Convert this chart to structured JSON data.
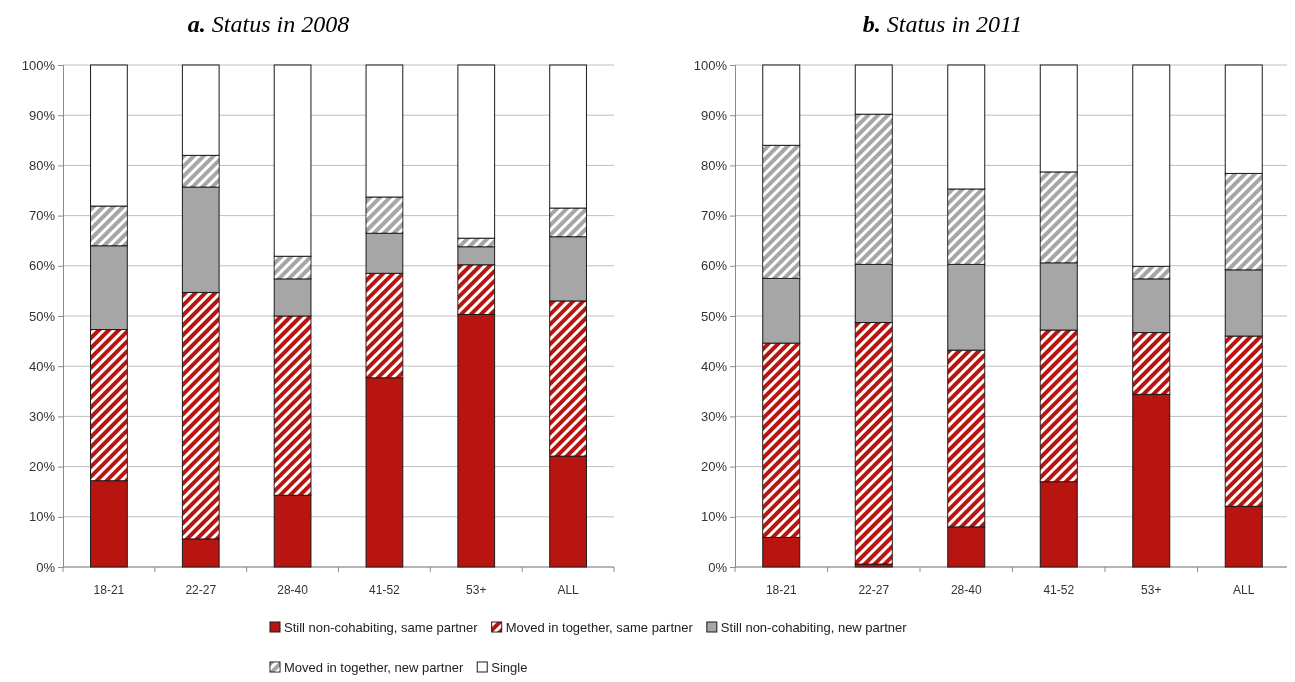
{
  "chart_data": [
    {
      "type": "bar",
      "stacked": true,
      "title": "a. Status in 2008",
      "categories": [
        "18-21",
        "22-27",
        "28-40",
        "41-52",
        "53+",
        "ALL"
      ],
      "ylim": [
        0,
        100
      ],
      "yticks": [
        {
          "value": 0,
          "label": "0%"
        },
        {
          "value": 10,
          "label": "10%"
        },
        {
          "value": 20,
          "label": "20%"
        },
        {
          "value": 30,
          "label": "30%"
        },
        {
          "value": 40,
          "label": "40%"
        },
        {
          "value": 50,
          "label": "50%"
        },
        {
          "value": 60,
          "label": "60%"
        },
        {
          "value": 70,
          "label": "70%"
        },
        {
          "value": 80,
          "label": "80%"
        },
        {
          "value": 90,
          "label": "90%"
        },
        {
          "value": 100,
          "label": "100%"
        }
      ],
      "grid": "y",
      "legend": "bottom",
      "series": [
        {
          "name": "Still non-cohabiting, same partner",
          "color": "#b91510",
          "values": [
            17.2,
            5.6,
            14.3,
            37.7,
            50.3,
            22.1
          ]
        },
        {
          "name": "Moved in together, same partner",
          "color": "#b91510",
          "values": [
            30.1,
            49.1,
            35.7,
            20.8,
            9.9,
            30.9
          ]
        },
        {
          "name": "Still non-cohabiting, new partner",
          "color": "#a6a6a6",
          "values": [
            16.7,
            21.0,
            7.4,
            8.0,
            3.6,
            12.8
          ]
        },
        {
          "name": "Moved in together, new partner",
          "color": "#a6a6a6",
          "values": [
            7.9,
            6.3,
            4.5,
            7.2,
            1.7,
            5.7
          ]
        },
        {
          "name": "Single",
          "color": "#ffffff",
          "values": [
            28.1,
            18.0,
            38.1,
            26.3,
            34.5,
            28.5
          ]
        }
      ]
    },
    {
      "type": "bar",
      "stacked": true,
      "title": "b. Status in 2011",
      "categories": [
        "18-21",
        "22-27",
        "28-40",
        "41-52",
        "53+",
        "ALL"
      ],
      "ylim": [
        0,
        100
      ],
      "yticks": [
        {
          "value": 0,
          "label": "0%"
        },
        {
          "value": 10,
          "label": "10%"
        },
        {
          "value": 20,
          "label": "20%"
        },
        {
          "value": 30,
          "label": "30%"
        },
        {
          "value": 40,
          "label": "40%"
        },
        {
          "value": 50,
          "label": "50%"
        },
        {
          "value": 60,
          "label": "60%"
        },
        {
          "value": 70,
          "label": "70%"
        },
        {
          "value": 80,
          "label": "80%"
        },
        {
          "value": 90,
          "label": "90%"
        },
        {
          "value": 100,
          "label": "100%"
        }
      ],
      "grid": "y",
      "series": [
        {
          "color": "#b91510",
          "values": [
            5.9,
            0.6,
            8.0,
            17.0,
            34.4,
            12.1
          ]
        },
        {
          "color": "#b91510",
          "values": [
            38.7,
            48.1,
            35.2,
            30.2,
            12.3,
            33.9
          ]
        },
        {
          "color": "#a6a6a6",
          "values": [
            12.9,
            11.6,
            17.1,
            13.4,
            10.7,
            13.2
          ]
        },
        {
          "color": "#a6a6a6",
          "values": [
            26.5,
            29.9,
            15.0,
            18.1,
            2.5,
            19.2
          ]
        },
        {
          "color": "#ffffff",
          "values": [
            16.0,
            9.8,
            24.7,
            21.3,
            40.1,
            21.6
          ]
        }
      ]
    }
  ]
}
